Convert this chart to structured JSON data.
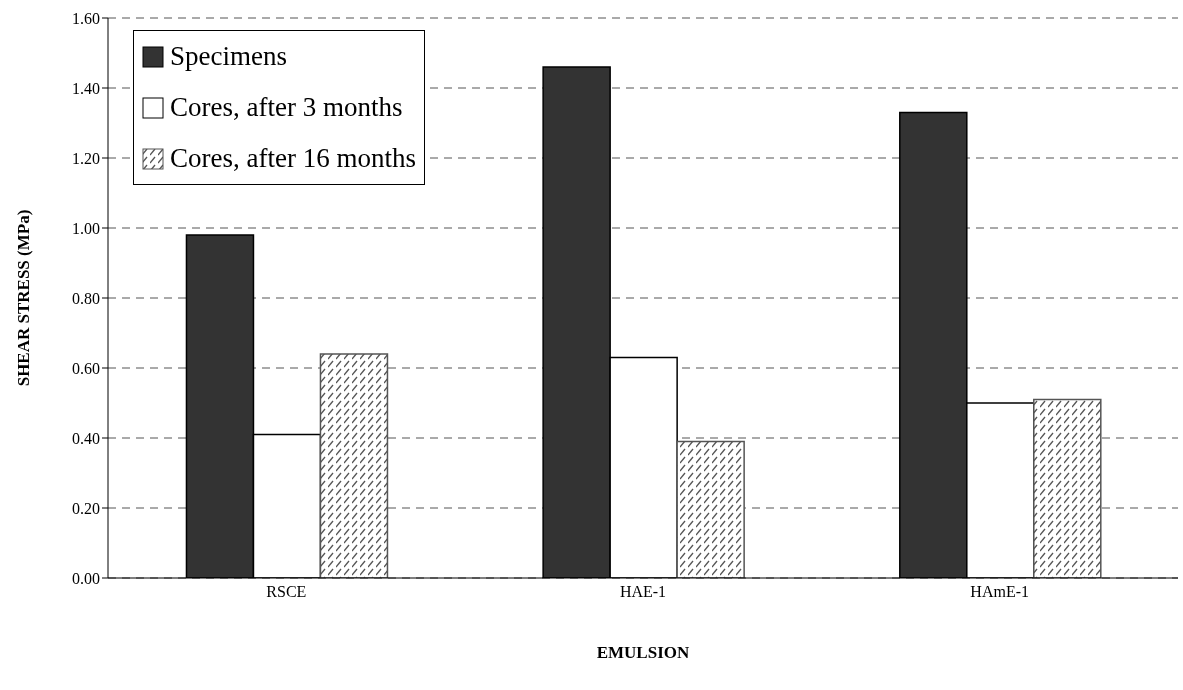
{
  "chart_data": {
    "type": "bar",
    "xlabel": "EMULSION",
    "ylabel": "SHEAR STRESS (MPa)",
    "categories": [
      "RSCE",
      "HAE-1",
      "HAmE-1"
    ],
    "series": [
      {
        "name": "Specimens",
        "color": "#333333",
        "values": [
          0.98,
          1.46,
          1.33
        ]
      },
      {
        "name": "Cores, after 3 months",
        "color": "#ffffff",
        "values": [
          0.41,
          0.63,
          0.5
        ]
      },
      {
        "name": "Cores, after 16 months",
        "color": "#555555",
        "values": [
          0.64,
          0.39,
          0.51
        ]
      }
    ],
    "ylim": [
      0,
      1.6
    ],
    "yticks": [
      {
        "value": 0,
        "label": "0.00"
      },
      {
        "value": 0.2,
        "label": "0.20"
      },
      {
        "value": 0.4,
        "label": "0.40"
      },
      {
        "value": 0.6,
        "label": "0.60"
      },
      {
        "value": 0.8,
        "label": "0.80"
      },
      {
        "value": 1.0,
        "label": "1.00"
      },
      {
        "value": 1.2,
        "label": "1.20"
      },
      {
        "value": 1.4,
        "label": "1.40"
      },
      {
        "value": 1.6,
        "label": "1.60"
      }
    ],
    "grid": "y",
    "legend": "top left"
  }
}
